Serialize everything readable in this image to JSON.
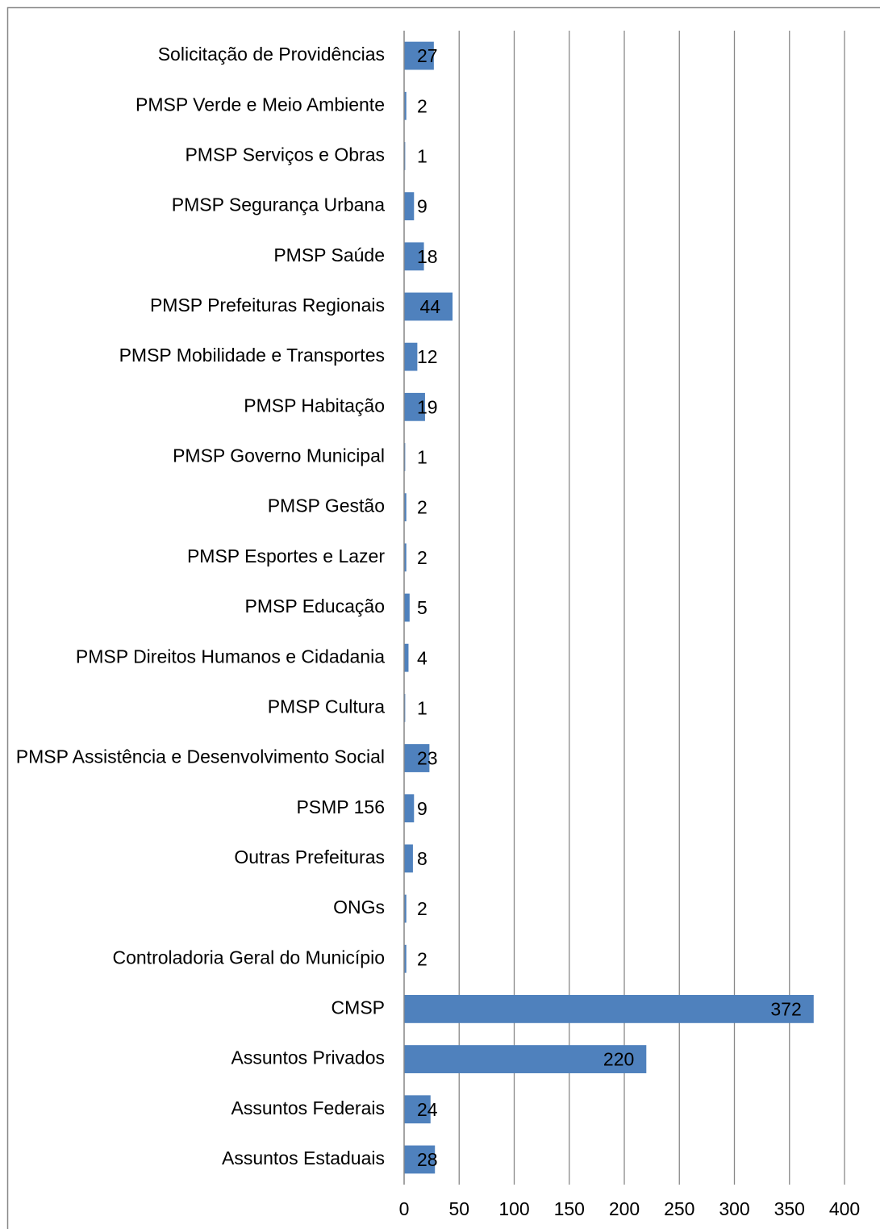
{
  "chart_data": {
    "type": "bar",
    "orientation": "horizontal",
    "categories": [
      "Solicitação de Providências",
      "PMSP Verde e Meio Ambiente",
      "PMSP Serviços e Obras",
      "PMSP Segurança Urbana",
      "PMSP Saúde",
      "PMSP Prefeituras Regionais",
      "PMSP Mobilidade e Transportes",
      "PMSP Habitação",
      "PMSP Governo Municipal",
      "PMSP Gestão",
      "PMSP Esportes e Lazer",
      "PMSP Educação",
      "PMSP Direitos Humanos e Cidadania",
      "PMSP Cultura",
      "PMSP Assistência e Desenvolvimento Social",
      "PSMP 156",
      "Outras Prefeituras",
      "ONGs",
      "Controladoria Geral do Município",
      "CMSP",
      "Assuntos Privados",
      "Assuntos Federais",
      "Assuntos Estaduais"
    ],
    "values": [
      27,
      2,
      1,
      9,
      18,
      44,
      12,
      19,
      1,
      2,
      2,
      5,
      4,
      1,
      23,
      9,
      8,
      2,
      2,
      372,
      220,
      24,
      28
    ],
    "color": "#4f81bd",
    "xlim": [
      0,
      400
    ],
    "xticks": [
      0,
      50,
      100,
      150,
      200,
      250,
      300,
      350,
      400
    ],
    "grid": true
  }
}
